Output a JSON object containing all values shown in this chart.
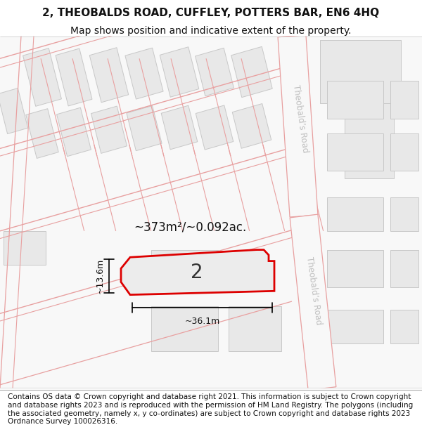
{
  "title_line1": "2, THEOBALDS ROAD, CUFFLEY, POTTERS BAR, EN6 4HQ",
  "title_line2": "Map shows position and indicative extent of the property.",
  "footer_text": "Contains OS data © Crown copyright and database right 2021. This information is subject to Crown copyright and database rights 2023 and is reproduced with the permission of HM Land Registry. The polygons (including the associated geometry, namely x, y co-ordinates) are subject to Crown copyright and database rights 2023 Ordnance Survey 100026316.",
  "background_color": "#ffffff",
  "road_label1": "Theobald’s Road",
  "road_label2": "Theobald’s Road",
  "property_number": "2",
  "area_label": "~373m²/~0.092ac.",
  "width_label": "~36.1m",
  "height_label": "~13.6m",
  "title_fontsize": 11,
  "subtitle_fontsize": 10,
  "footer_fontsize": 7.5,
  "map_bg": "#f8f8f8",
  "road_line_color": "#e8a0a0",
  "building_fill": "#e8e8e8",
  "building_edge": "#c8c8c8",
  "prop_fill": "#ececec",
  "prop_edge": "#dd0000",
  "road_text_color": "#c0c0c0"
}
